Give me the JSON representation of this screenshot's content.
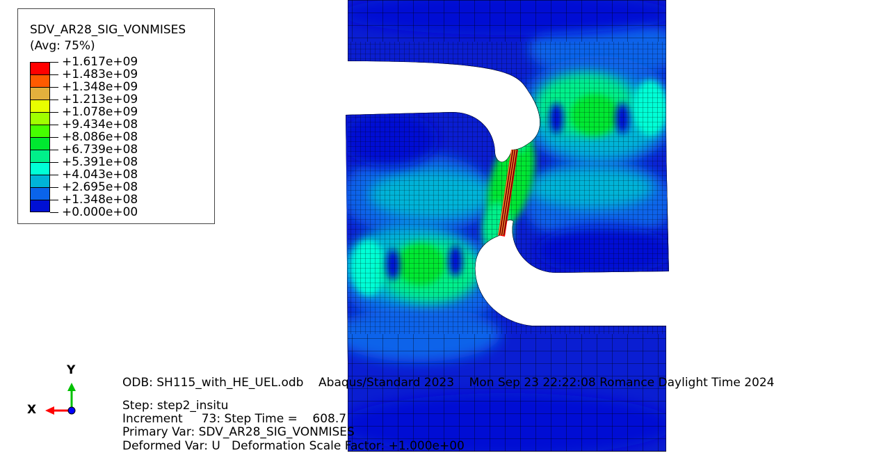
{
  "legend": {
    "title": "SDV_AR28_SIG_VONMISES",
    "subtitle": "(Avg: 75%)",
    "labels": [
      "+1.617e+09",
      "+1.483e+09",
      "+1.348e+09",
      "+1.213e+09",
      "+1.078e+09",
      "+9.434e+08",
      "+8.086e+08",
      "+6.739e+08",
      "+5.391e+08",
      "+4.043e+08",
      "+2.695e+08",
      "+1.348e+08",
      "+0.000e+00"
    ],
    "colors": [
      "#ff0000",
      "#ff5a00",
      "#e3b03d",
      "#e8ff00",
      "#a0ff00",
      "#46ff00",
      "#00e830",
      "#00f08a",
      "#00ffd6",
      "#00b4d8",
      "#0a64ea",
      "#0010d4"
    ]
  },
  "info": {
    "odb": "ODB: SH115_with_HE_UEL.odb    Abaqus/Standard 2023    Mon Sep 23 22:22:08 Romance Daylight Time 2024",
    "step": "Step: step2_insitu",
    "increment": "Increment     73: Step Time =    608.7",
    "primary_var": "Primary Var: SDV_AR28_SIG_VONMISES",
    "deformed_var": "Deformed Var: U   Deformation Scale Factor: +1.000e+00"
  },
  "triad": {
    "x_label": "X",
    "y_label": "Y",
    "x_color": "#ff0000",
    "y_color": "#00c000",
    "z_color": "#0000ff"
  },
  "model": {
    "base_color": "#0a1ed2",
    "mesh_color": "#000000"
  }
}
